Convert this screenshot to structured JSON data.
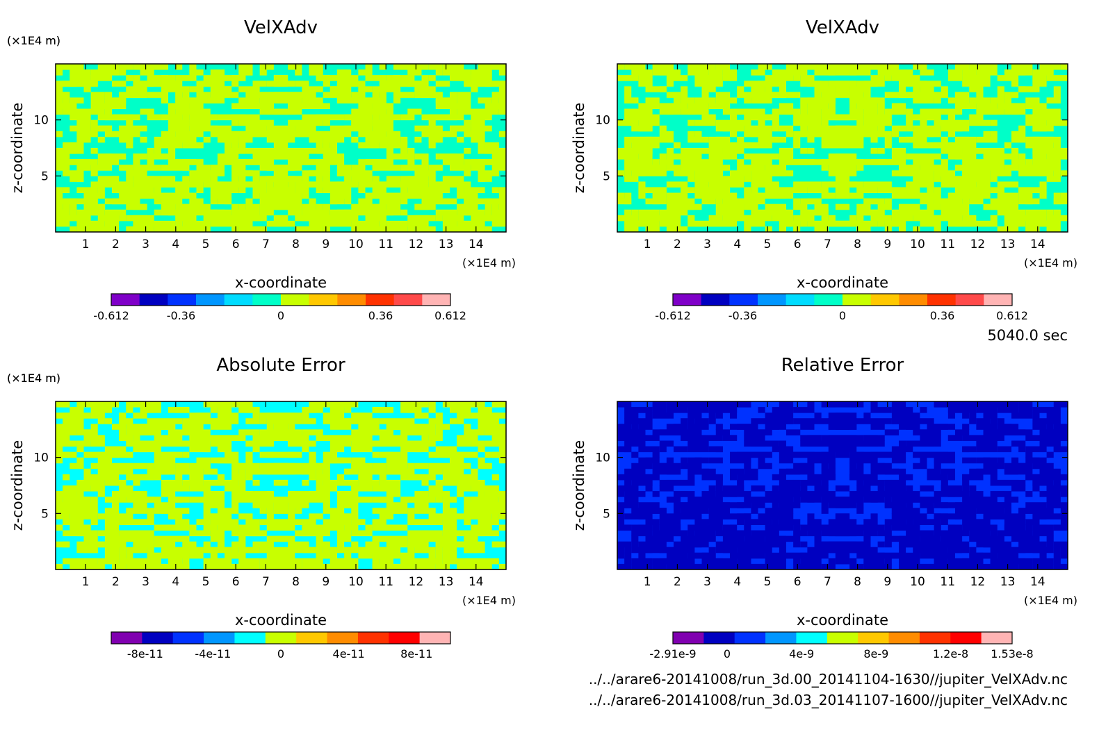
{
  "time_label": "5040.0 sec",
  "files": [
    "../../arare6-20141008/run_3d.00_20141104-1630//jupiter_VelXAdv.nc",
    "../../arare6-20141008/run_3d.03_20141107-1600//jupiter_VelXAdv.nc"
  ],
  "chart_data": [
    {
      "type": "heatmap",
      "title": "VelXAdv",
      "xlabel": "x-coordinate",
      "ylabel": "z-coordinate",
      "x_unit": "(×1E4 m)",
      "y_unit": "(×1E4 m)",
      "x_ticks": [
        "1",
        "2",
        "3",
        "4",
        "5",
        "6",
        "7",
        "8",
        "9",
        "10",
        "11",
        "12",
        "13",
        "14"
      ],
      "y_ticks": [
        "5",
        "10"
      ],
      "xlim": [
        0,
        15
      ],
      "ylim": [
        0,
        15
      ],
      "colorbar": {
        "colors": [
          "#7f00c8",
          "#0000c0",
          "#0032ff",
          "#0096ff",
          "#00dcff",
          "#00ffc8",
          "#c8ff00",
          "#ffc800",
          "#ff8c00",
          "#ff3200",
          "#ff4a4a",
          "#ffb4b4"
        ],
        "tick_labels": [
          "-0.612",
          "-0.36",
          "0",
          "0.36",
          "0.612"
        ],
        "tick_values": [
          -0.612,
          -0.36,
          0,
          0.36,
          0.612
        ],
        "range": [
          -0.612,
          0.612
        ]
      },
      "field_colors": [
        "#00ffc8",
        "#c8ff00"
      ]
    },
    {
      "type": "heatmap",
      "title": "VelXAdv",
      "xlabel": "x-coordinate",
      "ylabel": "z-coordinate",
      "x_unit": "(×1E4 m)",
      "y_unit": "(×1E4 m)",
      "x_ticks": [
        "1",
        "2",
        "3",
        "4",
        "5",
        "6",
        "7",
        "8",
        "9",
        "10",
        "11",
        "12",
        "13",
        "14"
      ],
      "y_ticks": [
        "5",
        "10"
      ],
      "xlim": [
        0,
        15
      ],
      "ylim": [
        0,
        15
      ],
      "colorbar": {
        "colors": [
          "#7f00c8",
          "#0000c0",
          "#0032ff",
          "#0096ff",
          "#00dcff",
          "#00ffc8",
          "#c8ff00",
          "#ffc800",
          "#ff8c00",
          "#ff3200",
          "#ff4a4a",
          "#ffb4b4"
        ],
        "tick_labels": [
          "-0.612",
          "-0.36",
          "0",
          "0.36",
          "0.612"
        ],
        "tick_values": [
          -0.612,
          -0.36,
          0,
          0.36,
          0.612
        ],
        "range": [
          -0.612,
          0.612
        ]
      },
      "field_colors": [
        "#00ffc8",
        "#c8ff00"
      ]
    },
    {
      "type": "heatmap",
      "title": "Absolute Error",
      "xlabel": "x-coordinate",
      "ylabel": "z-coordinate",
      "x_unit": "(×1E4 m)",
      "y_unit": "(×1E4 m)",
      "x_ticks": [
        "1",
        "2",
        "3",
        "4",
        "5",
        "6",
        "7",
        "8",
        "9",
        "10",
        "11",
        "12",
        "13",
        "14"
      ],
      "y_ticks": [
        "5",
        "10"
      ],
      "xlim": [
        0,
        15
      ],
      "ylim": [
        0,
        15
      ],
      "colorbar": {
        "colors": [
          "#8000b0",
          "#0000c0",
          "#0032ff",
          "#0096ff",
          "#00ffff",
          "#c8ff00",
          "#ffc800",
          "#ff8c00",
          "#ff3200",
          "#ff0000",
          "#ffb4b4"
        ],
        "tick_labels": [
          "-8e-11",
          "-4e-11",
          "0",
          "4e-11",
          "8e-11"
        ],
        "tick_values": [
          -8e-11,
          -4e-11,
          0,
          4e-11,
          8e-11
        ],
        "range": [
          -1e-10,
          1e-10
        ]
      },
      "field_colors": [
        "#00ffff",
        "#c8ff00"
      ]
    },
    {
      "type": "heatmap",
      "title": "Relative Error",
      "xlabel": "x-coordinate",
      "ylabel": "z-coordinate",
      "x_unit": "(×1E4 m)",
      "y_unit": "(×1E4 m)",
      "x_ticks": [
        "1",
        "2",
        "3",
        "4",
        "5",
        "6",
        "7",
        "8",
        "9",
        "10",
        "11",
        "12",
        "13",
        "14"
      ],
      "y_ticks": [
        "5",
        "10"
      ],
      "xlim": [
        0,
        15
      ],
      "ylim": [
        0,
        15
      ],
      "colorbar": {
        "colors": [
          "#8000b0",
          "#0000c0",
          "#0032ff",
          "#0096ff",
          "#00ffff",
          "#c8ff00",
          "#ffc800",
          "#ff8c00",
          "#ff3200",
          "#ff0000",
          "#ffb4b4"
        ],
        "tick_labels": [
          "-2.91e-9",
          "0",
          "4e-9",
          "8e-9",
          "1.2e-8",
          "1.53e-8"
        ],
        "tick_values": [
          -2.91e-09,
          0,
          4e-09,
          8e-09,
          1.2e-08,
          1.53e-08
        ],
        "range": [
          -2.91e-09,
          1.53e-08
        ]
      },
      "field_colors": [
        "#0032ff",
        "#0000c0"
      ]
    }
  ]
}
